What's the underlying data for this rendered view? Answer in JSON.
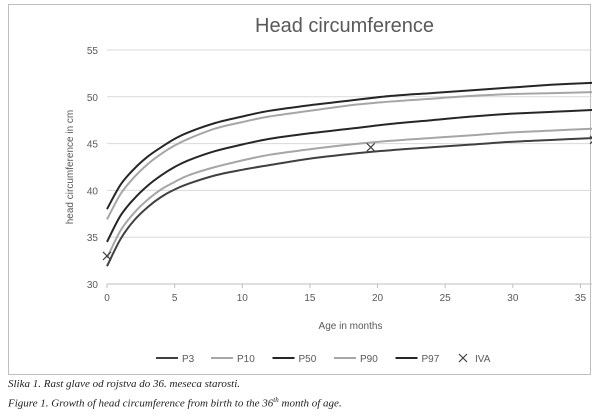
{
  "chart_data": {
    "type": "line",
    "title": "Head circumference",
    "xlabel": "Age in months",
    "ylabel": "head circumference in cm",
    "xlim": [
      0,
      36
    ],
    "ylim": [
      30,
      55
    ],
    "xticks": [
      0,
      5,
      10,
      15,
      20,
      25,
      30,
      35
    ],
    "yticks": [
      30,
      35,
      40,
      45,
      50,
      55
    ],
    "grid": "horizontal",
    "legend_position": "bottom",
    "x": [
      0,
      1,
      2,
      3,
      4,
      5,
      6,
      8,
      10,
      12,
      15,
      18,
      21,
      24,
      27,
      30,
      33,
      36
    ],
    "series": [
      {
        "name": "P3",
        "color": "#404040",
        "values": [
          31.9,
          34.8,
          36.8,
          38.2,
          39.3,
          40.1,
          40.7,
          41.6,
          42.2,
          42.7,
          43.4,
          43.9,
          44.3,
          44.6,
          44.9,
          45.2,
          45.4,
          45.6
        ]
      },
      {
        "name": "P10",
        "color": "#a6a6a6",
        "values": [
          32.8,
          35.7,
          37.6,
          39.0,
          40.1,
          40.9,
          41.6,
          42.5,
          43.2,
          43.8,
          44.4,
          44.9,
          45.3,
          45.6,
          45.9,
          46.2,
          46.4,
          46.6
        ]
      },
      {
        "name": "P50",
        "color": "#262626",
        "values": [
          34.5,
          37.3,
          39.1,
          40.5,
          41.6,
          42.5,
          43.2,
          44.2,
          44.9,
          45.5,
          46.1,
          46.6,
          47.1,
          47.5,
          47.9,
          48.2,
          48.4,
          48.6
        ]
      },
      {
        "name": "P90",
        "color": "#a6a6a6",
        "values": [
          36.9,
          39.6,
          41.4,
          42.8,
          43.9,
          44.8,
          45.5,
          46.6,
          47.3,
          47.9,
          48.5,
          49.1,
          49.5,
          49.8,
          50.1,
          50.3,
          50.4,
          50.5
        ]
      },
      {
        "name": "P97",
        "color": "#262626",
        "values": [
          38.0,
          40.6,
          42.3,
          43.6,
          44.6,
          45.5,
          46.2,
          47.2,
          47.9,
          48.5,
          49.1,
          49.6,
          50.1,
          50.4,
          50.7,
          51.0,
          51.3,
          51.5
        ]
      }
    ],
    "markers": {
      "name": "IVA",
      "symbol": "×",
      "color": "#404040",
      "points": [
        {
          "x": 0,
          "y": 33.0
        },
        {
          "x": 19.5,
          "y": 44.6
        },
        {
          "x": 36,
          "y": 45.4
        }
      ]
    },
    "colors": {
      "grid": "#d9d9d9",
      "axis": "#bfbfbf",
      "text": "#595959"
    }
  },
  "caption": {
    "serbian": "Slika 1. Rast glave od rojstva do 36. meseca starosti.",
    "english_prefix": "Figure 1. Growth of head circumference from birth to the 36",
    "english_superscript": "th",
    "english_suffix": " month of age."
  }
}
